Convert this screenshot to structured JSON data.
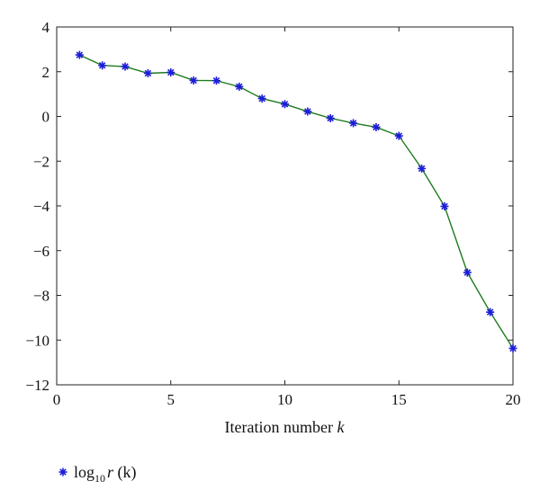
{
  "chart_data": {
    "type": "line",
    "x": [
      1,
      2,
      3,
      4,
      5,
      6,
      7,
      8,
      9,
      10,
      11,
      12,
      13,
      14,
      15,
      16,
      17,
      18,
      19,
      20
    ],
    "series": [
      {
        "name": "log10r (k)",
        "values": [
          2.75,
          2.28,
          2.23,
          1.93,
          1.97,
          1.61,
          1.6,
          1.33,
          0.8,
          0.55,
          0.22,
          -0.08,
          -0.3,
          -0.48,
          -0.87,
          -2.33,
          -4.02,
          -6.98,
          -8.75,
          -10.37
        ],
        "line_color": "#1e7b1e",
        "marker_color": "#1c1cd9",
        "marker": "asterisk"
      }
    ],
    "xlim": [
      0,
      20
    ],
    "ylim": [
      -12,
      4
    ],
    "xticks": [
      0,
      5,
      10,
      15,
      20
    ],
    "yticks": [
      -12,
      -10,
      -8,
      -6,
      -4,
      -2,
      0,
      2,
      4
    ],
    "xlabel": "Iteration number",
    "xlabel_var": "k",
    "legend": {
      "placement": "bottom-left, below plot",
      "label_log": "log",
      "label_sub": "10",
      "label_var": "r",
      "label_tail": " (k)"
    },
    "grid": false
  }
}
